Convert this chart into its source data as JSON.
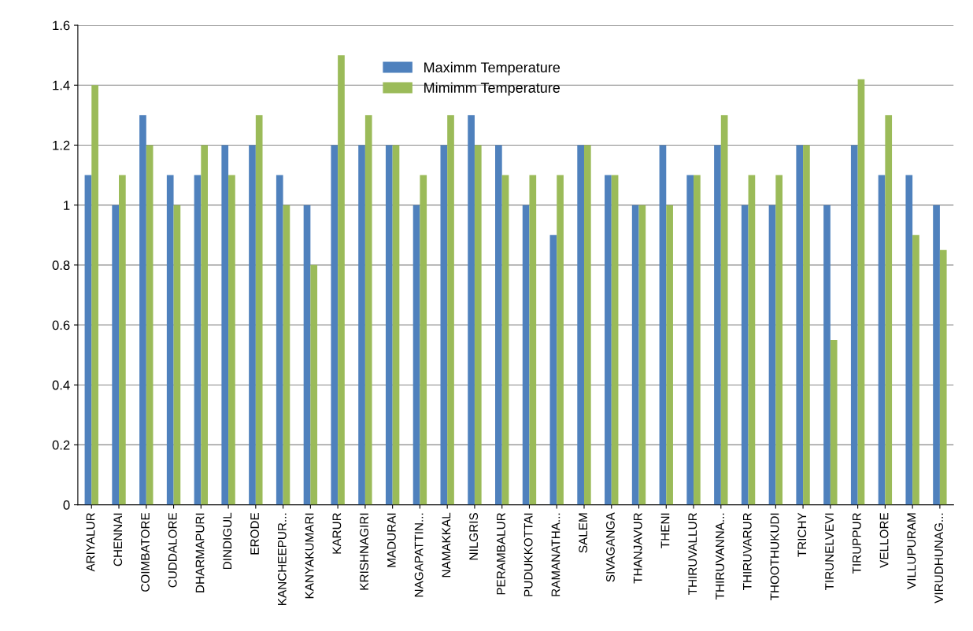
{
  "chart_data": {
    "type": "bar",
    "categories": [
      "ARIYALUR",
      "CHENNAI",
      "COIMBATORE",
      "CUDDALORE",
      "DHARMAPURI",
      "DINDIGUL",
      "ERODE",
      "KANCHEEPUR...",
      "KANYAKUMARI",
      "KARUR",
      "KRISHNAGIRI",
      "MADURAI",
      "NAGAPATTIN...",
      "NAMAKKAL",
      "NILGRIS",
      "PERAMBALUR",
      "PUDUKKOTTAI",
      "RAMANATHA...",
      "SALEM",
      "SIVAGANGA",
      "THANJAVUR",
      "THENI",
      "THIRUVALLUR",
      "THIRUVANNA...",
      "THIRUVARUR",
      "THOOTHUKUDI",
      "TRICHY",
      "TIRUNELVEVI",
      "TIRUPPUR",
      "VELLORE",
      "VILLUPURAM",
      "VIRUDHUNAG..."
    ],
    "series": [
      {
        "name": "Maximm Temperature",
        "color": "#4f81bd",
        "values": [
          1.1,
          1.0,
          1.3,
          1.1,
          1.1,
          1.2,
          1.2,
          1.1,
          1.0,
          1.2,
          1.2,
          1.2,
          1.0,
          1.2,
          1.3,
          1.2,
          1.0,
          0.9,
          1.2,
          1.1,
          1.0,
          1.2,
          1.1,
          1.2,
          1.0,
          1.0,
          1.2,
          1.0,
          1.2,
          1.1,
          1.1,
          1.0
        ]
      },
      {
        "name": "Mimimm Temperature",
        "color": "#9bbb59",
        "values": [
          1.4,
          1.1,
          1.2,
          1.0,
          1.2,
          1.1,
          1.3,
          1.0,
          0.8,
          1.5,
          1.3,
          1.2,
          1.1,
          1.3,
          1.2,
          1.1,
          1.1,
          1.1,
          1.2,
          1.1,
          1.0,
          1.0,
          1.1,
          1.3,
          1.1,
          1.1,
          1.2,
          0.55,
          1.42,
          1.3,
          0.9,
          0.85
        ]
      }
    ],
    "ylim": [
      0,
      1.6
    ],
    "yticks": [
      {
        "value": 0,
        "label": "0"
      },
      {
        "value": 0.2,
        "label": "0.2"
      },
      {
        "value": 0.4,
        "label": "0.4"
      },
      {
        "value": 0.6,
        "label": "0.6"
      },
      {
        "value": 0.8,
        "label": "0.8"
      },
      {
        "value": 1,
        "label": "1"
      },
      {
        "value": 1.2,
        "label": "1.2"
      },
      {
        "value": 1.4,
        "label": "1.4"
      },
      {
        "value": 1.6,
        "label": "1.6"
      }
    ],
    "grid": "y",
    "legend": "top"
  }
}
